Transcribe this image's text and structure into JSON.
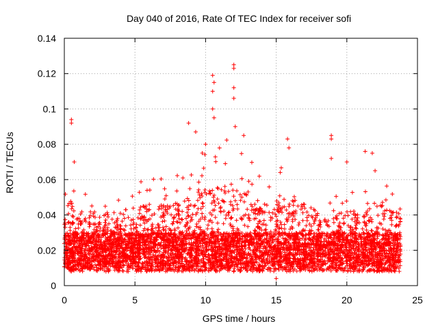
{
  "chart_data": {
    "type": "scatter",
    "title": "Day 040 of 2016, Rate Of TEC Index for receiver sofi",
    "xlabel": "GPS time / hours",
    "ylabel": "ROTI / TECUs",
    "xlim": [
      0,
      25
    ],
    "ylim": [
      0,
      0.14
    ],
    "x_ticks": [
      0,
      5,
      10,
      15,
      20,
      25
    ],
    "x_tick_labels": [
      "0",
      "5",
      "10",
      "15",
      "20",
      "25"
    ],
    "y_ticks": [
      0,
      0.02,
      0.04,
      0.06,
      0.08,
      0.1,
      0.12,
      0.14
    ],
    "y_tick_labels": [
      "0",
      "0.02",
      "0.04",
      "0.06",
      "0.08",
      "0.1",
      "0.12",
      "0.14"
    ],
    "grid": true,
    "marker": "+",
    "marker_color": "#ff0000",
    "series": [
      {
        "name": "ROTI",
        "color": "#ff0000",
        "x_range_hours": [
          0,
          23.8
        ],
        "typical_band": [
          0.01,
          0.03
        ],
        "notable_points": [
          {
            "x": 0.5,
            "y": 0.094
          },
          {
            "x": 0.5,
            "y": 0.092
          },
          {
            "x": 0.7,
            "y": 0.07
          },
          {
            "x": 8.8,
            "y": 0.092
          },
          {
            "x": 9.3,
            "y": 0.087
          },
          {
            "x": 10.0,
            "y": 0.08
          },
          {
            "x": 10.5,
            "y": 0.119
          },
          {
            "x": 10.6,
            "y": 0.115
          },
          {
            "x": 10.5,
            "y": 0.11
          },
          {
            "x": 10.5,
            "y": 0.1
          },
          {
            "x": 10.6,
            "y": 0.095
          },
          {
            "x": 12.0,
            "y": 0.125
          },
          {
            "x": 12.0,
            "y": 0.123
          },
          {
            "x": 12.0,
            "y": 0.112
          },
          {
            "x": 12.0,
            "y": 0.106
          },
          {
            "x": 12.1,
            "y": 0.09
          },
          {
            "x": 12.7,
            "y": 0.085
          },
          {
            "x": 15.8,
            "y": 0.083
          },
          {
            "x": 15.9,
            "y": 0.078
          },
          {
            "x": 18.9,
            "y": 0.085
          },
          {
            "x": 18.9,
            "y": 0.083
          },
          {
            "x": 18.9,
            "y": 0.072
          },
          {
            "x": 20.0,
            "y": 0.07
          },
          {
            "x": 20.1,
            "y": 0.034
          },
          {
            "x": 21.3,
            "y": 0.076
          },
          {
            "x": 21.8,
            "y": 0.075
          },
          {
            "x": 22.0,
            "y": 0.065
          },
          {
            "x": 15.0,
            "y": 0.004
          }
        ]
      }
    ]
  }
}
